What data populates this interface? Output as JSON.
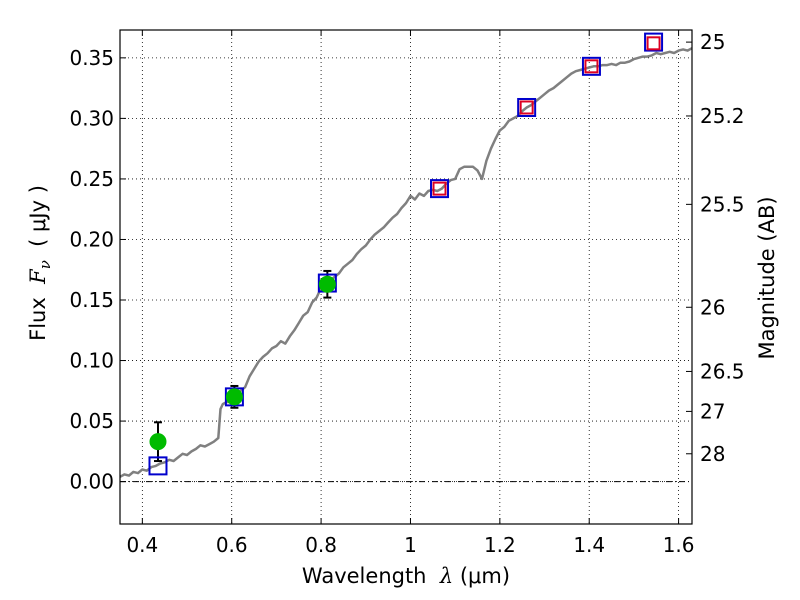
{
  "chart_data": {
    "type": "scatter",
    "xlabel_prefix": "Wavelength",
    "xlabel_symbol": "λ",
    "xlabel_unit": "(μm)",
    "ylabel_prefix": "Flux",
    "ylabel_symbol": "F",
    "ylabel_subscript": "ν",
    "ylabel_unit": "( μJy )",
    "y2label": "Magnitude (AB)",
    "xlim": [
      0.35,
      1.63
    ],
    "ylim": [
      -0.035,
      0.373
    ],
    "xticks": [
      {
        "value": 0.4,
        "label": "0.4"
      },
      {
        "value": 0.6,
        "label": "0.6"
      },
      {
        "value": 0.8,
        "label": "0.8"
      },
      {
        "value": 1.0,
        "label": "1"
      },
      {
        "value": 1.2,
        "label": "1.2"
      },
      {
        "value": 1.4,
        "label": "1.4"
      },
      {
        "value": 1.6,
        "label": "1.6"
      }
    ],
    "yticks": [
      {
        "value": 0.0,
        "label": "0.00"
      },
      {
        "value": 0.05,
        "label": "0.05"
      },
      {
        "value": 0.1,
        "label": "0.10"
      },
      {
        "value": 0.15,
        "label": "0.15"
      },
      {
        "value": 0.2,
        "label": "0.20"
      },
      {
        "value": 0.25,
        "label": "0.25"
      },
      {
        "value": 0.3,
        "label": "0.30"
      },
      {
        "value": 0.35,
        "label": "0.35"
      }
    ],
    "y2ticks": [
      {
        "flux": 0.363,
        "label": "25"
      },
      {
        "flux": 0.302,
        "label": "25.2"
      },
      {
        "flux": 0.229,
        "label": "25.5"
      },
      {
        "flux": 0.144,
        "label": "26"
      },
      {
        "flux": 0.091,
        "label": "26.5"
      },
      {
        "flux": 0.058,
        "label": "27"
      },
      {
        "flux": 0.023,
        "label": "28"
      }
    ],
    "grid": true,
    "colors": {
      "model_line": "#808080",
      "observed": "#00bb00",
      "synthetic": "#0000cc",
      "predicted": "#dd0022",
      "zero_line": "#000000"
    },
    "model_spectrum": [
      [
        0.35,
        0.004
      ],
      [
        0.36,
        0.006
      ],
      [
        0.37,
        0.005
      ],
      [
        0.38,
        0.008
      ],
      [
        0.39,
        0.007
      ],
      [
        0.4,
        0.01
      ],
      [
        0.41,
        0.009
      ],
      [
        0.42,
        0.012
      ],
      [
        0.43,
        0.013
      ],
      [
        0.44,
        0.015
      ],
      [
        0.45,
        0.016
      ],
      [
        0.46,
        0.018
      ],
      [
        0.47,
        0.017
      ],
      [
        0.48,
        0.02
      ],
      [
        0.49,
        0.023
      ],
      [
        0.5,
        0.022
      ],
      [
        0.51,
        0.025
      ],
      [
        0.52,
        0.027
      ],
      [
        0.53,
        0.03
      ],
      [
        0.54,
        0.029
      ],
      [
        0.55,
        0.031
      ],
      [
        0.56,
        0.033
      ],
      [
        0.57,
        0.036
      ],
      [
        0.575,
        0.06
      ],
      [
        0.58,
        0.064
      ],
      [
        0.59,
        0.066
      ],
      [
        0.6,
        0.065
      ],
      [
        0.61,
        0.072
      ],
      [
        0.62,
        0.075
      ],
      [
        0.63,
        0.078
      ],
      [
        0.64,
        0.087
      ],
      [
        0.65,
        0.093
      ],
      [
        0.66,
        0.099
      ],
      [
        0.67,
        0.103
      ],
      [
        0.68,
        0.106
      ],
      [
        0.69,
        0.11
      ],
      [
        0.7,
        0.112
      ],
      [
        0.71,
        0.116
      ],
      [
        0.72,
        0.114
      ],
      [
        0.73,
        0.12
      ],
      [
        0.74,
        0.125
      ],
      [
        0.75,
        0.131
      ],
      [
        0.76,
        0.137
      ],
      [
        0.77,
        0.14
      ],
      [
        0.78,
        0.148
      ],
      [
        0.79,
        0.152
      ],
      [
        0.8,
        0.16
      ],
      [
        0.81,
        0.163
      ],
      [
        0.82,
        0.166
      ],
      [
        0.83,
        0.169
      ],
      [
        0.84,
        0.172
      ],
      [
        0.85,
        0.177
      ],
      [
        0.86,
        0.18
      ],
      [
        0.87,
        0.183
      ],
      [
        0.88,
        0.188
      ],
      [
        0.89,
        0.192
      ],
      [
        0.9,
        0.195
      ],
      [
        0.91,
        0.2
      ],
      [
        0.92,
        0.204
      ],
      [
        0.93,
        0.207
      ],
      [
        0.94,
        0.21
      ],
      [
        0.95,
        0.214
      ],
      [
        0.96,
        0.218
      ],
      [
        0.97,
        0.221
      ],
      [
        0.98,
        0.226
      ],
      [
        0.99,
        0.23
      ],
      [
        1.0,
        0.236
      ],
      [
        1.01,
        0.233
      ],
      [
        1.02,
        0.238
      ],
      [
        1.03,
        0.236
      ],
      [
        1.04,
        0.24
      ],
      [
        1.05,
        0.241
      ],
      [
        1.06,
        0.24
      ],
      [
        1.07,
        0.242
      ],
      [
        1.08,
        0.246
      ],
      [
        1.09,
        0.249
      ],
      [
        1.1,
        0.25
      ],
      [
        1.11,
        0.258
      ],
      [
        1.12,
        0.26
      ],
      [
        1.13,
        0.26
      ],
      [
        1.14,
        0.26
      ],
      [
        1.15,
        0.257
      ],
      [
        1.16,
        0.25
      ],
      [
        1.17,
        0.265
      ],
      [
        1.18,
        0.275
      ],
      [
        1.19,
        0.283
      ],
      [
        1.2,
        0.29
      ],
      [
        1.21,
        0.293
      ],
      [
        1.22,
        0.298
      ],
      [
        1.23,
        0.3
      ],
      [
        1.24,
        0.302
      ],
      [
        1.25,
        0.306
      ],
      [
        1.26,
        0.309
      ],
      [
        1.27,
        0.311
      ],
      [
        1.28,
        0.314
      ],
      [
        1.29,
        0.317
      ],
      [
        1.3,
        0.32
      ],
      [
        1.31,
        0.323
      ],
      [
        1.32,
        0.325
      ],
      [
        1.33,
        0.328
      ],
      [
        1.34,
        0.331
      ],
      [
        1.35,
        0.334
      ],
      [
        1.36,
        0.337
      ],
      [
        1.37,
        0.339
      ],
      [
        1.38,
        0.34
      ],
      [
        1.39,
        0.341
      ],
      [
        1.4,
        0.342
      ],
      [
        1.41,
        0.343
      ],
      [
        1.42,
        0.343
      ],
      [
        1.43,
        0.344
      ],
      [
        1.44,
        0.344
      ],
      [
        1.45,
        0.345
      ],
      [
        1.46,
        0.344
      ],
      [
        1.47,
        0.346
      ],
      [
        1.48,
        0.346
      ],
      [
        1.49,
        0.347
      ],
      [
        1.5,
        0.349
      ],
      [
        1.51,
        0.35
      ],
      [
        1.52,
        0.351
      ],
      [
        1.53,
        0.351
      ],
      [
        1.54,
        0.352
      ],
      [
        1.55,
        0.354
      ],
      [
        1.56,
        0.353
      ],
      [
        1.57,
        0.354
      ],
      [
        1.58,
        0.355
      ],
      [
        1.59,
        0.354
      ],
      [
        1.6,
        0.356
      ],
      [
        1.61,
        0.357
      ],
      [
        1.62,
        0.356
      ],
      [
        1.63,
        0.358
      ]
    ],
    "observed": [
      {
        "x": 0.435,
        "y": 0.033,
        "err": 0.016
      },
      {
        "x": 0.606,
        "y": 0.07,
        "err": 0.009
      },
      {
        "x": 0.814,
        "y": 0.163,
        "err": 0.011
      }
    ],
    "synthetic": [
      {
        "x": 0.435,
        "y": 0.013
      },
      {
        "x": 0.606,
        "y": 0.07
      },
      {
        "x": 0.814,
        "y": 0.164
      },
      {
        "x": 1.065,
        "y": 0.242
      },
      {
        "x": 1.26,
        "y": 0.309
      },
      {
        "x": 1.405,
        "y": 0.343
      },
      {
        "x": 1.544,
        "y": 0.363
      }
    ],
    "predicted": [
      {
        "x": 1.065,
        "y": 0.242
      },
      {
        "x": 1.26,
        "y": 0.309
      },
      {
        "x": 1.405,
        "y": 0.343
      },
      {
        "x": 1.544,
        "y": 0.362
      }
    ]
  }
}
